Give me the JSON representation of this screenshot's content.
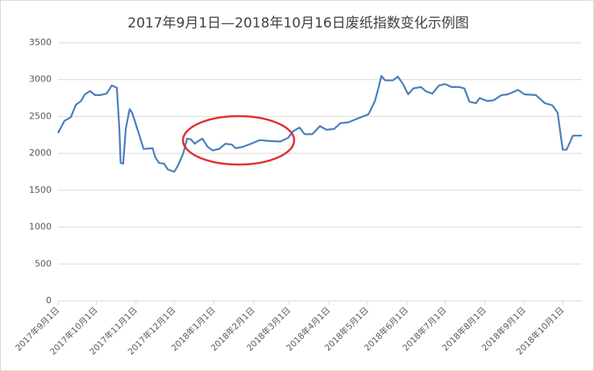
{
  "chart_data": {
    "type": "line",
    "title": "2017年9月1日—2018年10月16日废纸指数变化示例图",
    "x": [
      "2017-09-01",
      "2017-09-06",
      "2017-09-11",
      "2017-09-15",
      "2017-09-19",
      "2017-09-22",
      "2017-09-26",
      "2017-09-30",
      "2017-10-04",
      "2017-10-09",
      "2017-10-13",
      "2017-10-17",
      "2017-10-19",
      "2017-10-20",
      "2017-10-22",
      "2017-10-24",
      "2017-10-27",
      "2017-10-29",
      "2017-11-01",
      "2017-11-05",
      "2017-11-07",
      "2017-11-14",
      "2017-11-16",
      "2017-11-19",
      "2017-11-23",
      "2017-11-26",
      "2017-12-01",
      "2017-12-04",
      "2017-12-08",
      "2017-12-11",
      "2017-12-14",
      "2017-12-17",
      "2017-12-20",
      "2017-12-23",
      "2017-12-27",
      "2017-12-31",
      "2018-01-05",
      "2018-01-10",
      "2018-01-15",
      "2018-01-18",
      "2018-01-24",
      "2018-01-30",
      "2018-02-06",
      "2018-02-12",
      "2018-02-22",
      "2018-02-28",
      "2018-03-04",
      "2018-03-09",
      "2018-03-13",
      "2018-03-19",
      "2018-03-25",
      "2018-03-30",
      "2018-04-05",
      "2018-04-10",
      "2018-04-16",
      "2018-04-26",
      "2018-05-02",
      "2018-05-07",
      "2018-05-10",
      "2018-05-12",
      "2018-05-15",
      "2018-05-21",
      "2018-05-25",
      "2018-05-29",
      "2018-06-02",
      "2018-06-06",
      "2018-06-12",
      "2018-06-16",
      "2018-06-21",
      "2018-06-26",
      "2018-07-01",
      "2018-07-06",
      "2018-07-12",
      "2018-07-16",
      "2018-07-20",
      "2018-07-25",
      "2018-07-28",
      "2018-08-03",
      "2018-08-08",
      "2018-08-14",
      "2018-08-19",
      "2018-08-27",
      "2018-09-01",
      "2018-09-10",
      "2018-09-17",
      "2018-09-23",
      "2018-09-27",
      "2018-09-30",
      "2018-10-01",
      "2018-10-04",
      "2018-10-09",
      "2018-10-16"
    ],
    "values": [
      2275,
      2440,
      2490,
      2660,
      2710,
      2800,
      2845,
      2790,
      2790,
      2810,
      2920,
      2890,
      2330,
      1870,
      1860,
      2330,
      2600,
      2550,
      2390,
      2170,
      2060,
      2070,
      1950,
      1870,
      1860,
      1780,
      1750,
      1840,
      2000,
      2200,
      2190,
      2130,
      2170,
      2200,
      2090,
      2040,
      2060,
      2130,
      2120,
      2070,
      2090,
      2130,
      2180,
      2170,
      2160,
      2210,
      2300,
      2350,
      2260,
      2260,
      2370,
      2320,
      2330,
      2410,
      2420,
      2490,
      2530,
      2710,
      2900,
      3050,
      2990,
      2990,
      3040,
      2940,
      2800,
      2880,
      2900,
      2840,
      2810,
      2920,
      2940,
      2900,
      2900,
      2880,
      2700,
      2680,
      2750,
      2710,
      2720,
      2790,
      2800,
      2860,
      2800,
      2790,
      2680,
      2650,
      2550,
      2170,
      2050,
      2050,
      2240,
      2240
    ],
    "color": "#4a7ebb",
    "xlim": [
      "2017-09-01",
      "2018-10-16"
    ],
    "xticks": [
      {
        "value": "2017-09-01",
        "label": "2017年9月1日"
      },
      {
        "value": "2017-10-01",
        "label": "2017年10月1日"
      },
      {
        "value": "2017-11-01",
        "label": "2017年11月1日"
      },
      {
        "value": "2017-12-01",
        "label": "2017年12月1日"
      },
      {
        "value": "2018-01-01",
        "label": "2018年1月1日"
      },
      {
        "value": "2018-02-01",
        "label": "2018年2月1日"
      },
      {
        "value": "2018-03-01",
        "label": "2018年3月1日"
      },
      {
        "value": "2018-04-01",
        "label": "2018年4月1日"
      },
      {
        "value": "2018-05-01",
        "label": "2018年5月1日"
      },
      {
        "value": "2018-06-01",
        "label": "2018年6月1日"
      },
      {
        "value": "2018-07-01",
        "label": "2018年7月1日"
      },
      {
        "value": "2018-08-01",
        "label": "2018年8月1日"
      },
      {
        "value": "2018-09-01",
        "label": "2018年9月1日"
      },
      {
        "value": "2018-10-01",
        "label": "2018年10月1日"
      }
    ],
    "ylim": [
      0,
      3500
    ],
    "yticks": [
      0,
      500,
      1000,
      1500,
      2000,
      2500,
      3000,
      3500
    ],
    "grid": true
  }
}
